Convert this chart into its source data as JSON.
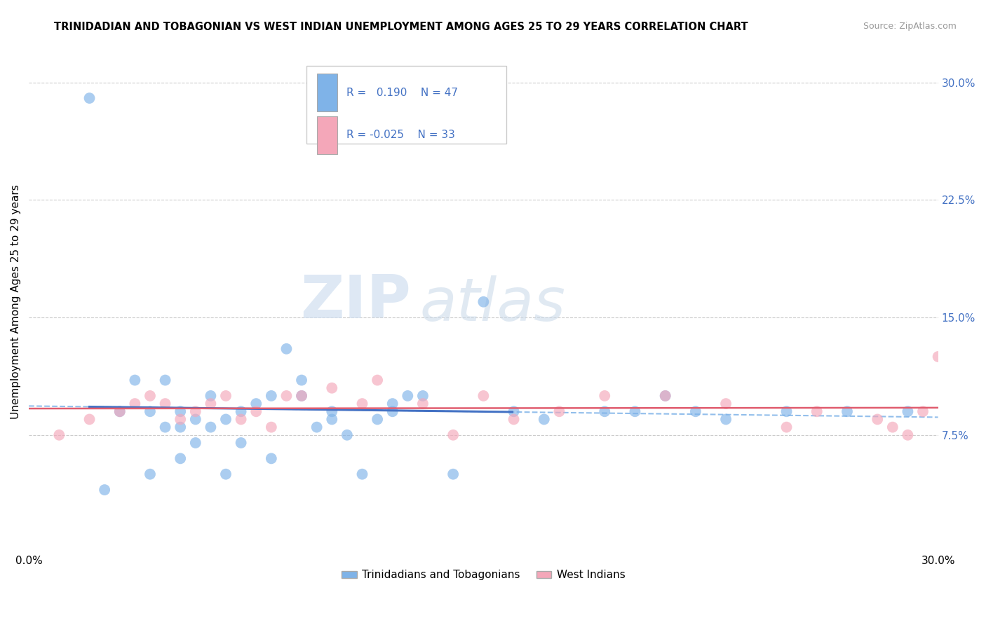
{
  "title": "TRINIDADIAN AND TOBAGONIAN VS WEST INDIAN UNEMPLOYMENT AMONG AGES 25 TO 29 YEARS CORRELATION CHART",
  "source": "Source: ZipAtlas.com",
  "ylabel": "Unemployment Among Ages 25 to 29 years",
  "xlim": [
    0.0,
    0.3
  ],
  "ylim": [
    0.0,
    0.32
  ],
  "xtick_positions": [
    0.0,
    0.3
  ],
  "xticklabels": [
    "0.0%",
    "30.0%"
  ],
  "ytick_positions": [
    0.075,
    0.15,
    0.225,
    0.3
  ],
  "ytick_labels": [
    "7.5%",
    "15.0%",
    "22.5%",
    "30.0%"
  ],
  "grid_color": "#cccccc",
  "background_color": "#ffffff",
  "blue_color": "#7fb3e8",
  "pink_color": "#f4a7b9",
  "blue_line_color": "#4472c4",
  "pink_line_color": "#e05c6e",
  "dashed_line_color": "#7fb3e8",
  "legend_R1": "0.190",
  "legend_N1": "47",
  "legend_R2": "-0.025",
  "legend_N2": "33",
  "watermark_zip": "ZIP",
  "watermark_atlas": "atlas",
  "legend_label1": "Trinidadians and Tobagonians",
  "legend_label2": "West Indians",
  "blue_scatter_x": [
    0.02,
    0.025,
    0.03,
    0.035,
    0.04,
    0.04,
    0.045,
    0.045,
    0.05,
    0.05,
    0.05,
    0.055,
    0.055,
    0.06,
    0.06,
    0.065,
    0.065,
    0.07,
    0.07,
    0.075,
    0.08,
    0.08,
    0.085,
    0.09,
    0.09,
    0.095,
    0.1,
    0.1,
    0.105,
    0.11,
    0.115,
    0.12,
    0.12,
    0.125,
    0.13,
    0.14,
    0.15,
    0.16,
    0.17,
    0.19,
    0.2,
    0.21,
    0.22,
    0.23,
    0.25,
    0.27,
    0.29
  ],
  "blue_scatter_y": [
    0.29,
    0.04,
    0.09,
    0.11,
    0.05,
    0.09,
    0.08,
    0.11,
    0.06,
    0.08,
    0.09,
    0.07,
    0.085,
    0.1,
    0.08,
    0.05,
    0.085,
    0.07,
    0.09,
    0.095,
    0.1,
    0.06,
    0.13,
    0.1,
    0.11,
    0.08,
    0.085,
    0.09,
    0.075,
    0.05,
    0.085,
    0.09,
    0.095,
    0.1,
    0.1,
    0.05,
    0.16,
    0.09,
    0.085,
    0.09,
    0.09,
    0.1,
    0.09,
    0.085,
    0.09,
    0.09,
    0.09
  ],
  "pink_scatter_x": [
    0.01,
    0.02,
    0.03,
    0.035,
    0.04,
    0.045,
    0.05,
    0.055,
    0.06,
    0.065,
    0.07,
    0.075,
    0.08,
    0.085,
    0.09,
    0.1,
    0.11,
    0.115,
    0.13,
    0.14,
    0.15,
    0.16,
    0.175,
    0.19,
    0.21,
    0.23,
    0.25,
    0.26,
    0.28,
    0.285,
    0.29,
    0.295,
    0.3
  ],
  "pink_scatter_y": [
    0.075,
    0.085,
    0.09,
    0.095,
    0.1,
    0.095,
    0.085,
    0.09,
    0.095,
    0.1,
    0.085,
    0.09,
    0.08,
    0.1,
    0.1,
    0.105,
    0.095,
    0.11,
    0.095,
    0.075,
    0.1,
    0.085,
    0.09,
    0.1,
    0.1,
    0.095,
    0.08,
    0.09,
    0.085,
    0.08,
    0.075,
    0.09,
    0.125
  ]
}
